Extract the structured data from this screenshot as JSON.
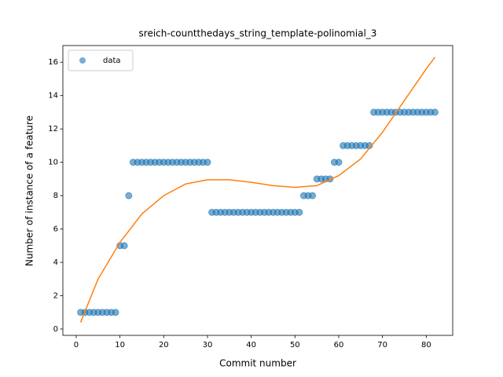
{
  "chart_data": {
    "type": "scatter",
    "title": "sreich-countthedays_string_template-polinomial_3",
    "xlabel": "Commit number",
    "ylabel": "Number of instance of a feature",
    "xlim": [
      -3.05,
      86.05
    ],
    "ylim": [
      -0.38,
      17.0
    ],
    "xticks": [
      0,
      10,
      20,
      30,
      40,
      50,
      60,
      70,
      80
    ],
    "yticks": [
      0,
      2,
      4,
      6,
      8,
      10,
      12,
      14,
      16
    ],
    "legend": "upper left",
    "series": [
      {
        "name": "data",
        "color": "#1f77b4",
        "kind": "points",
        "x": [
          1,
          2,
          3,
          4,
          5,
          6,
          7,
          8,
          9,
          10,
          11,
          12,
          13,
          14,
          15,
          16,
          17,
          18,
          19,
          20,
          21,
          22,
          23,
          24,
          25,
          26,
          27,
          28,
          29,
          30,
          31,
          32,
          33,
          34,
          35,
          36,
          37,
          38,
          39,
          40,
          41,
          42,
          43,
          44,
          45,
          46,
          47,
          48,
          49,
          50,
          51,
          52,
          53,
          54,
          55,
          56,
          57,
          58,
          59,
          60,
          61,
          62,
          63,
          64,
          65,
          66,
          67,
          68,
          69,
          70,
          71,
          72,
          73,
          74,
          75,
          76,
          77,
          78,
          79,
          80,
          81,
          82
        ],
        "values": [
          1,
          1,
          1,
          1,
          1,
          1,
          1,
          1,
          1,
          5,
          5,
          8,
          10,
          10,
          10,
          10,
          10,
          10,
          10,
          10,
          10,
          10,
          10,
          10,
          10,
          10,
          10,
          10,
          10,
          10,
          7,
          7,
          7,
          7,
          7,
          7,
          7,
          7,
          7,
          7,
          7,
          7,
          7,
          7,
          7,
          7,
          7,
          7,
          7,
          7,
          7,
          8,
          8,
          8,
          9,
          9,
          9,
          9,
          10,
          10,
          11,
          11,
          11,
          11,
          11,
          11,
          11,
          13,
          13,
          13,
          13,
          13,
          13,
          13,
          13,
          13,
          13,
          13,
          13,
          13,
          13,
          13
        ]
      },
      {
        "color": "#ff7f0e",
        "kind": "line",
        "x": [
          1,
          5,
          10,
          15,
          20,
          25,
          30,
          35,
          40,
          45,
          50,
          55,
          60,
          65,
          70,
          75,
          80,
          82
        ],
        "values": [
          0.4,
          3.0,
          5.2,
          6.9,
          8.0,
          8.7,
          8.95,
          8.95,
          8.8,
          8.6,
          8.5,
          8.6,
          9.2,
          10.2,
          11.8,
          13.7,
          15.6,
          16.3
        ]
      }
    ]
  }
}
